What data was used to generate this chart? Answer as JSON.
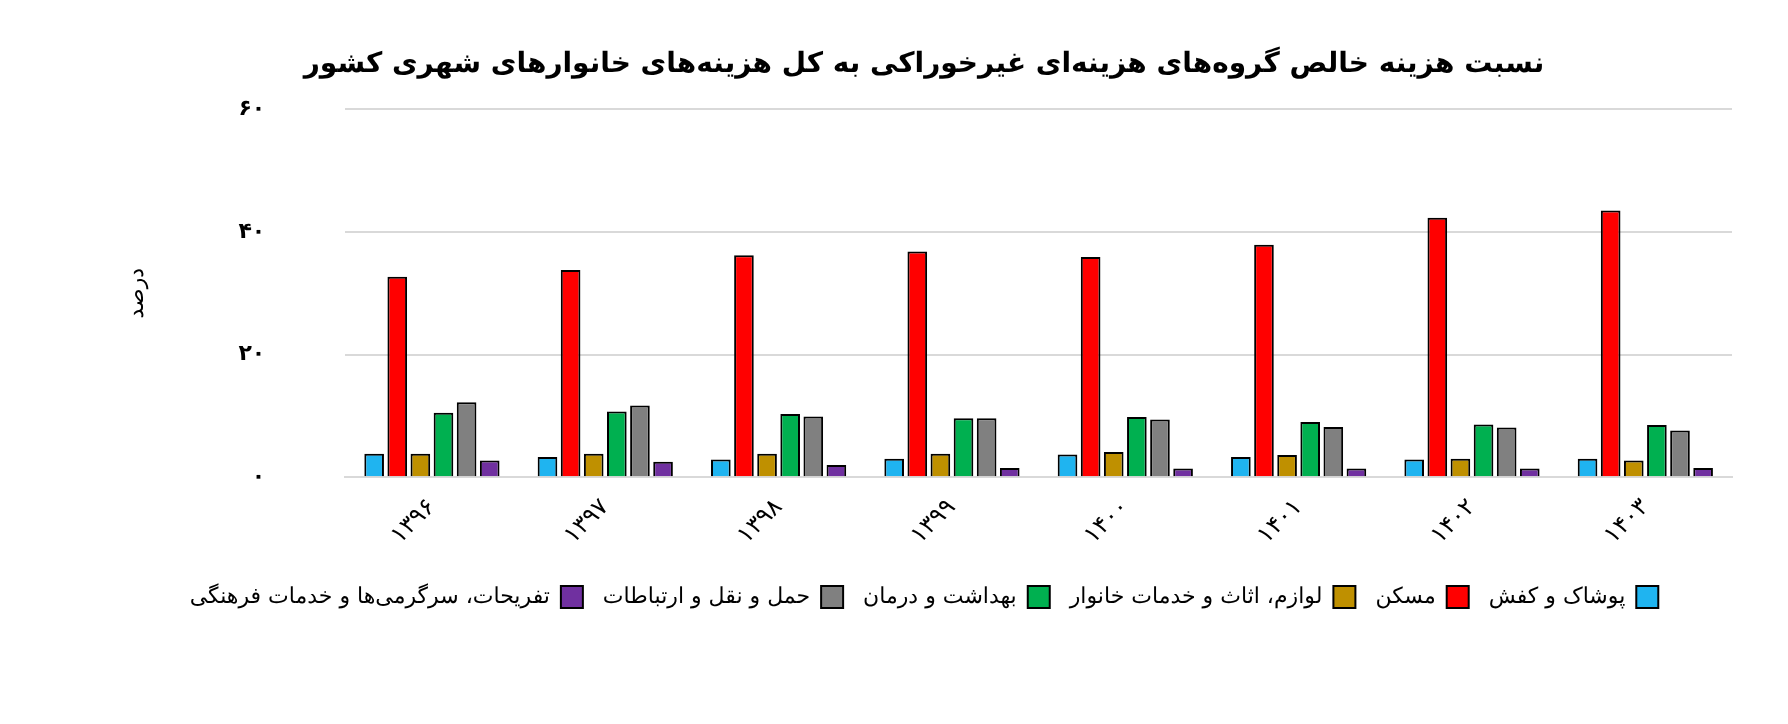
{
  "chart_data": {
    "type": "bar",
    "title": "نسبت هزینه خالص گروه‌های هزینه‌ای غیرخوراکی به کل هزینه‌های خانوارهای شهری کشور",
    "ylabel": "درصد",
    "categories": [
      "۱۳۹۶",
      "۱۳۹۷",
      "۱۳۹۸",
      "۱۳۹۹",
      "۱۴۰۰",
      "۱۴۰۱",
      "۱۴۰۲",
      "۱۴۰۳"
    ],
    "series": [
      {
        "name": "پوشاک و کفش",
        "color": "#1fb4f0",
        "values": [
          3.8,
          3.3,
          2.9,
          3.0,
          3.7,
          3.3,
          2.9,
          3.0
        ]
      },
      {
        "name": "مسکن",
        "color": "#ff0000",
        "values": [
          32.7,
          33.8,
          36.2,
          36.8,
          35.9,
          37.9,
          42.3,
          43.5
        ]
      },
      {
        "name": "لوازم، اثاث و خدمات خانوار",
        "color": "#bf9000",
        "values": [
          3.8,
          3.8,
          3.8,
          3.8,
          4.1,
          3.6,
          3.0,
          2.7
        ]
      },
      {
        "name": "بهداشت و درمان",
        "color": "#00b050",
        "values": [
          10.5,
          10.7,
          10.3,
          9.6,
          9.8,
          9.0,
          8.6,
          8.5
        ]
      },
      {
        "name": "حمل و نقل و ارتباطات",
        "color": "#808080",
        "values": [
          12.2,
          11.7,
          9.9,
          9.6,
          9.4,
          8.2,
          8.1,
          7.6
        ]
      },
      {
        "name": "تفریحات، سرگرمی‌ها و خدمات فرهنگی",
        "color": "#7030a0",
        "values": [
          2.7,
          2.5,
          2.0,
          1.5,
          1.4,
          1.4,
          1.4,
          1.5
        ]
      }
    ],
    "ylim": [
      0,
      60
    ],
    "yticks": [
      {
        "value": 0,
        "label": "۰"
      },
      {
        "value": 20,
        "label": "۲۰"
      },
      {
        "value": 40,
        "label": "۴۰"
      },
      {
        "value": 60,
        "label": "۶۰"
      }
    ],
    "grid": "y",
    "legend": "bottom"
  }
}
